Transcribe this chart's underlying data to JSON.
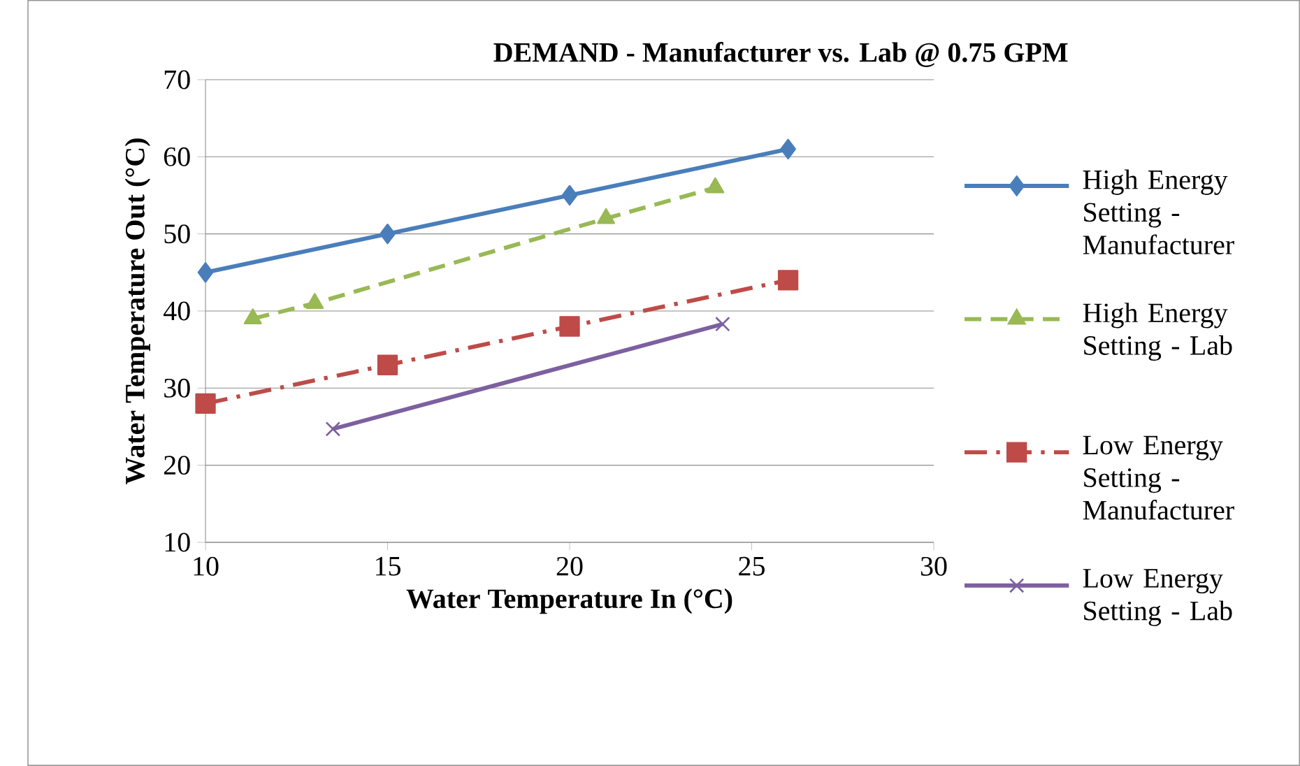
{
  "chart_data": {
    "type": "line",
    "title": "DEMAND - Manufacturer vs. Lab @ 0.75 GPM",
    "xlabel": "Water Temperature In (°C)",
    "ylabel": "Water Temperature Out (°C)",
    "xlim": [
      10,
      30
    ],
    "ylim": [
      10,
      70
    ],
    "xticks": [
      10,
      15,
      20,
      25,
      30
    ],
    "yticks": [
      10,
      20,
      30,
      40,
      50,
      60,
      70
    ],
    "grid": "y",
    "legend": "right",
    "series": [
      {
        "name": "High Energy Setting - Manufacturer",
        "color": "#4a7ebb",
        "x": [
          10,
          15,
          20,
          26
        ],
        "values": [
          45,
          50,
          55,
          61
        ],
        "marker": "diamond",
        "line_style": "solid"
      },
      {
        "name": "High Energy Setting - Lab",
        "color": "#98b954",
        "x": [
          11.3,
          13,
          21,
          24
        ],
        "values": [
          39,
          41,
          52,
          56
        ],
        "marker": "triangle",
        "line_style": "dashed"
      },
      {
        "name": "Low Energy Setting - Manufacturer",
        "color": "#be4b48",
        "x": [
          10,
          15,
          20,
          26
        ],
        "values": [
          28,
          33,
          38,
          44
        ],
        "marker": "square",
        "line_style": "dotted"
      },
      {
        "name": "Low Energy Setting -  Lab",
        "color": "#7d60a0",
        "x": [
          13.5,
          24.2
        ],
        "values": [
          24.7,
          38.3
        ],
        "marker": "cross",
        "line_style": "solid"
      }
    ]
  }
}
